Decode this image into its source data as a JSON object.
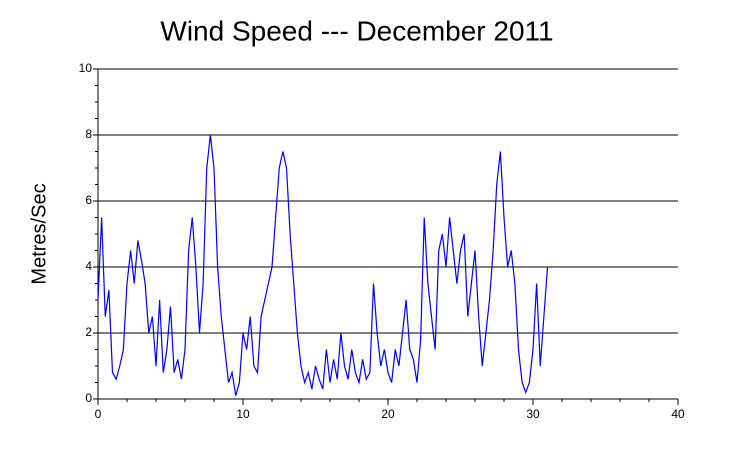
{
  "chart_data": {
    "type": "line",
    "title": "Wind Speed --- December 2011",
    "ylabel": "Metres/Sec",
    "color": "#0000ff",
    "grid": true,
    "xlim": [
      0,
      40
    ],
    "xticks": [
      0,
      10,
      20,
      30,
      40
    ],
    "ylim": [
      0,
      10
    ],
    "yticks": [
      0,
      2,
      4,
      6,
      8,
      10
    ],
    "x": [
      0,
      0.25,
      0.5,
      0.75,
      1,
      1.25,
      1.5,
      1.75,
      2,
      2.25,
      2.5,
      2.75,
      3,
      3.25,
      3.5,
      3.75,
      4,
      4.25,
      4.5,
      4.75,
      5,
      5.25,
      5.5,
      5.75,
      6,
      6.25,
      6.5,
      6.75,
      7,
      7.25,
      7.5,
      7.75,
      8,
      8.25,
      8.5,
      8.75,
      9,
      9.25,
      9.5,
      9.75,
      10,
      10.25,
      10.5,
      10.75,
      11,
      11.25,
      11.5,
      11.75,
      12,
      12.25,
      12.5,
      12.75,
      13,
      13.25,
      13.5,
      13.75,
      14,
      14.25,
      14.5,
      14.75,
      15,
      15.25,
      15.5,
      15.75,
      16,
      16.25,
      16.5,
      16.75,
      17,
      17.25,
      17.5,
      17.75,
      18,
      18.25,
      18.5,
      18.75,
      19,
      19.25,
      19.5,
      19.75,
      20,
      20.25,
      20.5,
      20.75,
      21,
      21.25,
      21.5,
      21.75,
      22,
      22.25,
      22.5,
      22.75,
      23,
      23.25,
      23.5,
      23.75,
      24,
      24.25,
      24.5,
      24.75,
      25,
      25.25,
      25.5,
      25.75,
      26,
      26.25,
      26.5,
      26.75,
      27,
      27.25,
      27.5,
      27.75,
      28,
      28.25,
      28.5,
      28.75,
      29,
      29.25,
      29.5,
      29.75,
      30,
      30.25,
      30.5,
      30.75,
      31
    ],
    "values": [
      3,
      5.5,
      2.5,
      3.3,
      0.8,
      0.6,
      1.0,
      1.5,
      3.5,
      4.5,
      3.5,
      4.8,
      4.2,
      3.5,
      2.0,
      2.5,
      1.0,
      3.0,
      0.8,
      1.5,
      2.8,
      0.8,
      1.2,
      0.6,
      1.5,
      4.5,
      5.5,
      4.0,
      2.0,
      3.5,
      7.0,
      8.0,
      7.0,
      4.0,
      2.5,
      1.5,
      0.5,
      0.8,
      0.1,
      0.5,
      2.0,
      1.5,
      2.5,
      1.0,
      0.8,
      2.5,
      3.0,
      3.5,
      4.0,
      5.5,
      7.0,
      7.5,
      7.0,
      5.0,
      3.5,
      2.0,
      1.0,
      0.5,
      0.8,
      0.3,
      1.0,
      0.6,
      0.3,
      1.5,
      0.5,
      1.2,
      0.6,
      2.0,
      1.0,
      0.6,
      1.5,
      0.8,
      0.5,
      1.2,
      0.6,
      0.8,
      3.5,
      2.0,
      1.0,
      1.5,
      0.8,
      0.5,
      1.5,
      1.0,
      2.0,
      3.0,
      1.5,
      1.2,
      0.5,
      1.8,
      5.5,
      3.5,
      2.5,
      1.5,
      4.5,
      5.0,
      4.0,
      5.5,
      4.5,
      3.5,
      4.5,
      5.0,
      2.5,
      3.5,
      4.5,
      2.5,
      1.0,
      2.0,
      3.0,
      4.5,
      6.5,
      7.5,
      5.5,
      4.0,
      4.5,
      3.5,
      1.5,
      0.5,
      0.2,
      0.5,
      1.5,
      3.5,
      1.0,
      2.5,
      4.0
    ]
  }
}
